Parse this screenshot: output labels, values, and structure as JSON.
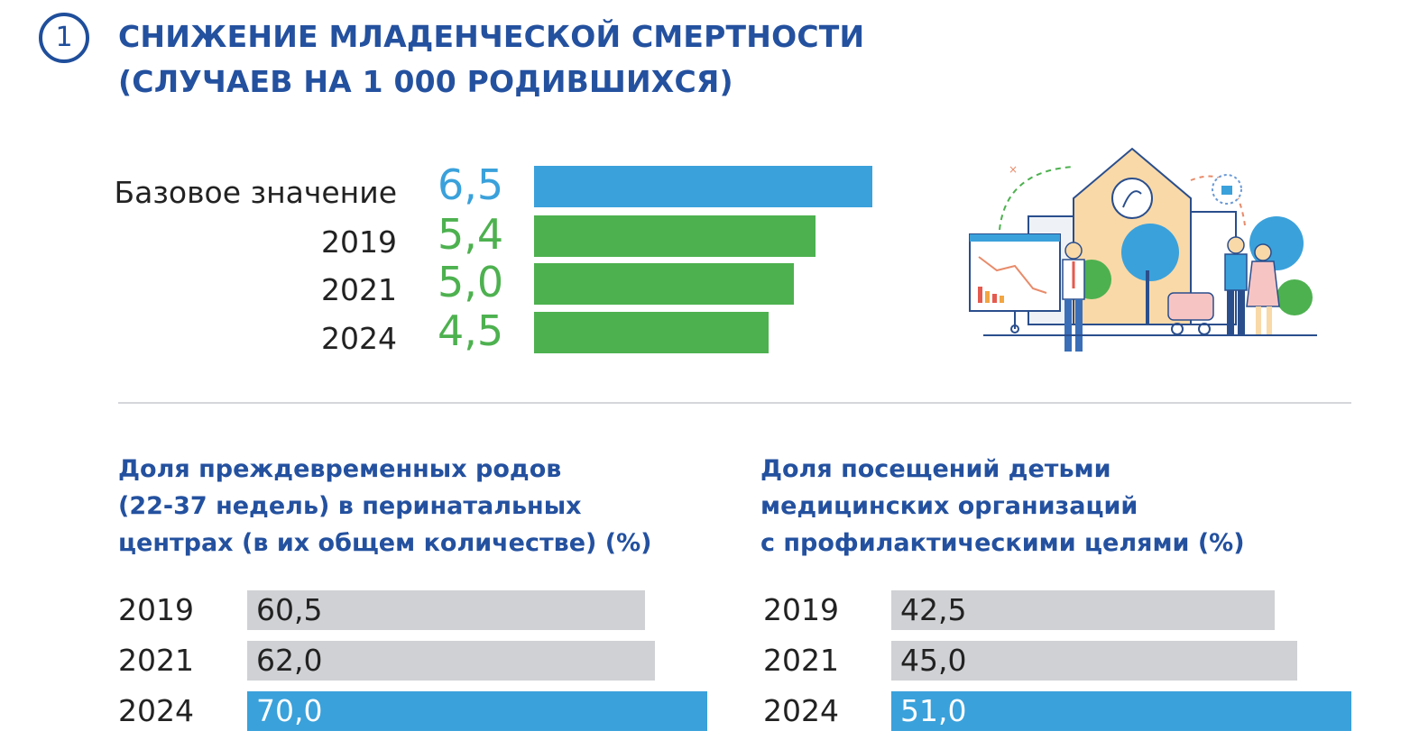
{
  "header": {
    "number": "1",
    "title_line1": "СНИЖЕНИЕ МЛАДЕНЧЕСКОЙ СМЕРТНОСТИ",
    "title_line2": "(СЛУЧАЕВ НА 1 000 РОДИВШИХСЯ)"
  },
  "colors": {
    "blue_bar": "#3aa1db",
    "green_bar": "#4db14f",
    "gray_bar": "#cfd1d4",
    "title_blue": "#24519f",
    "green_text": "#4db14f",
    "blue_text": "#3aa1db"
  },
  "chart_data": [
    {
      "type": "bar",
      "orientation": "horizontal",
      "categories": [
        "Базовое значение",
        "2019",
        "2021",
        "2024"
      ],
      "labels": [
        "6,5",
        "5,4",
        "5,0",
        "4,5"
      ],
      "values": [
        6.5,
        5.4,
        5.0,
        4.5
      ],
      "title": "СНИЖЕНИЕ МЛАДЕНЧЕСКОЙ СМЕРТНОСТИ (СЛУЧАЕВ НА 1 000 РОДИВШИХСЯ)"
    },
    {
      "type": "bar",
      "orientation": "horizontal",
      "title_lines": [
        "Доля преждевременных родов",
        "(22-37 недель) в перинатальных",
        "центрах (в их общем количестве) (%)"
      ],
      "categories": [
        "2019",
        "2021",
        "2024"
      ],
      "labels": [
        "60,5",
        "62,0",
        "70,0"
      ],
      "values": [
        60.5,
        62.0,
        70.0
      ]
    },
    {
      "type": "bar",
      "orientation": "horizontal",
      "title_lines": [
        "Доля посещений детьми",
        "медицинских организаций",
        "с профилактическими целями (%)"
      ],
      "categories": [
        "2019",
        "2021",
        "2024"
      ],
      "labels": [
        "42,5",
        "45,0",
        "51,0"
      ],
      "values": [
        42.5,
        45.0,
        51.0
      ]
    }
  ]
}
